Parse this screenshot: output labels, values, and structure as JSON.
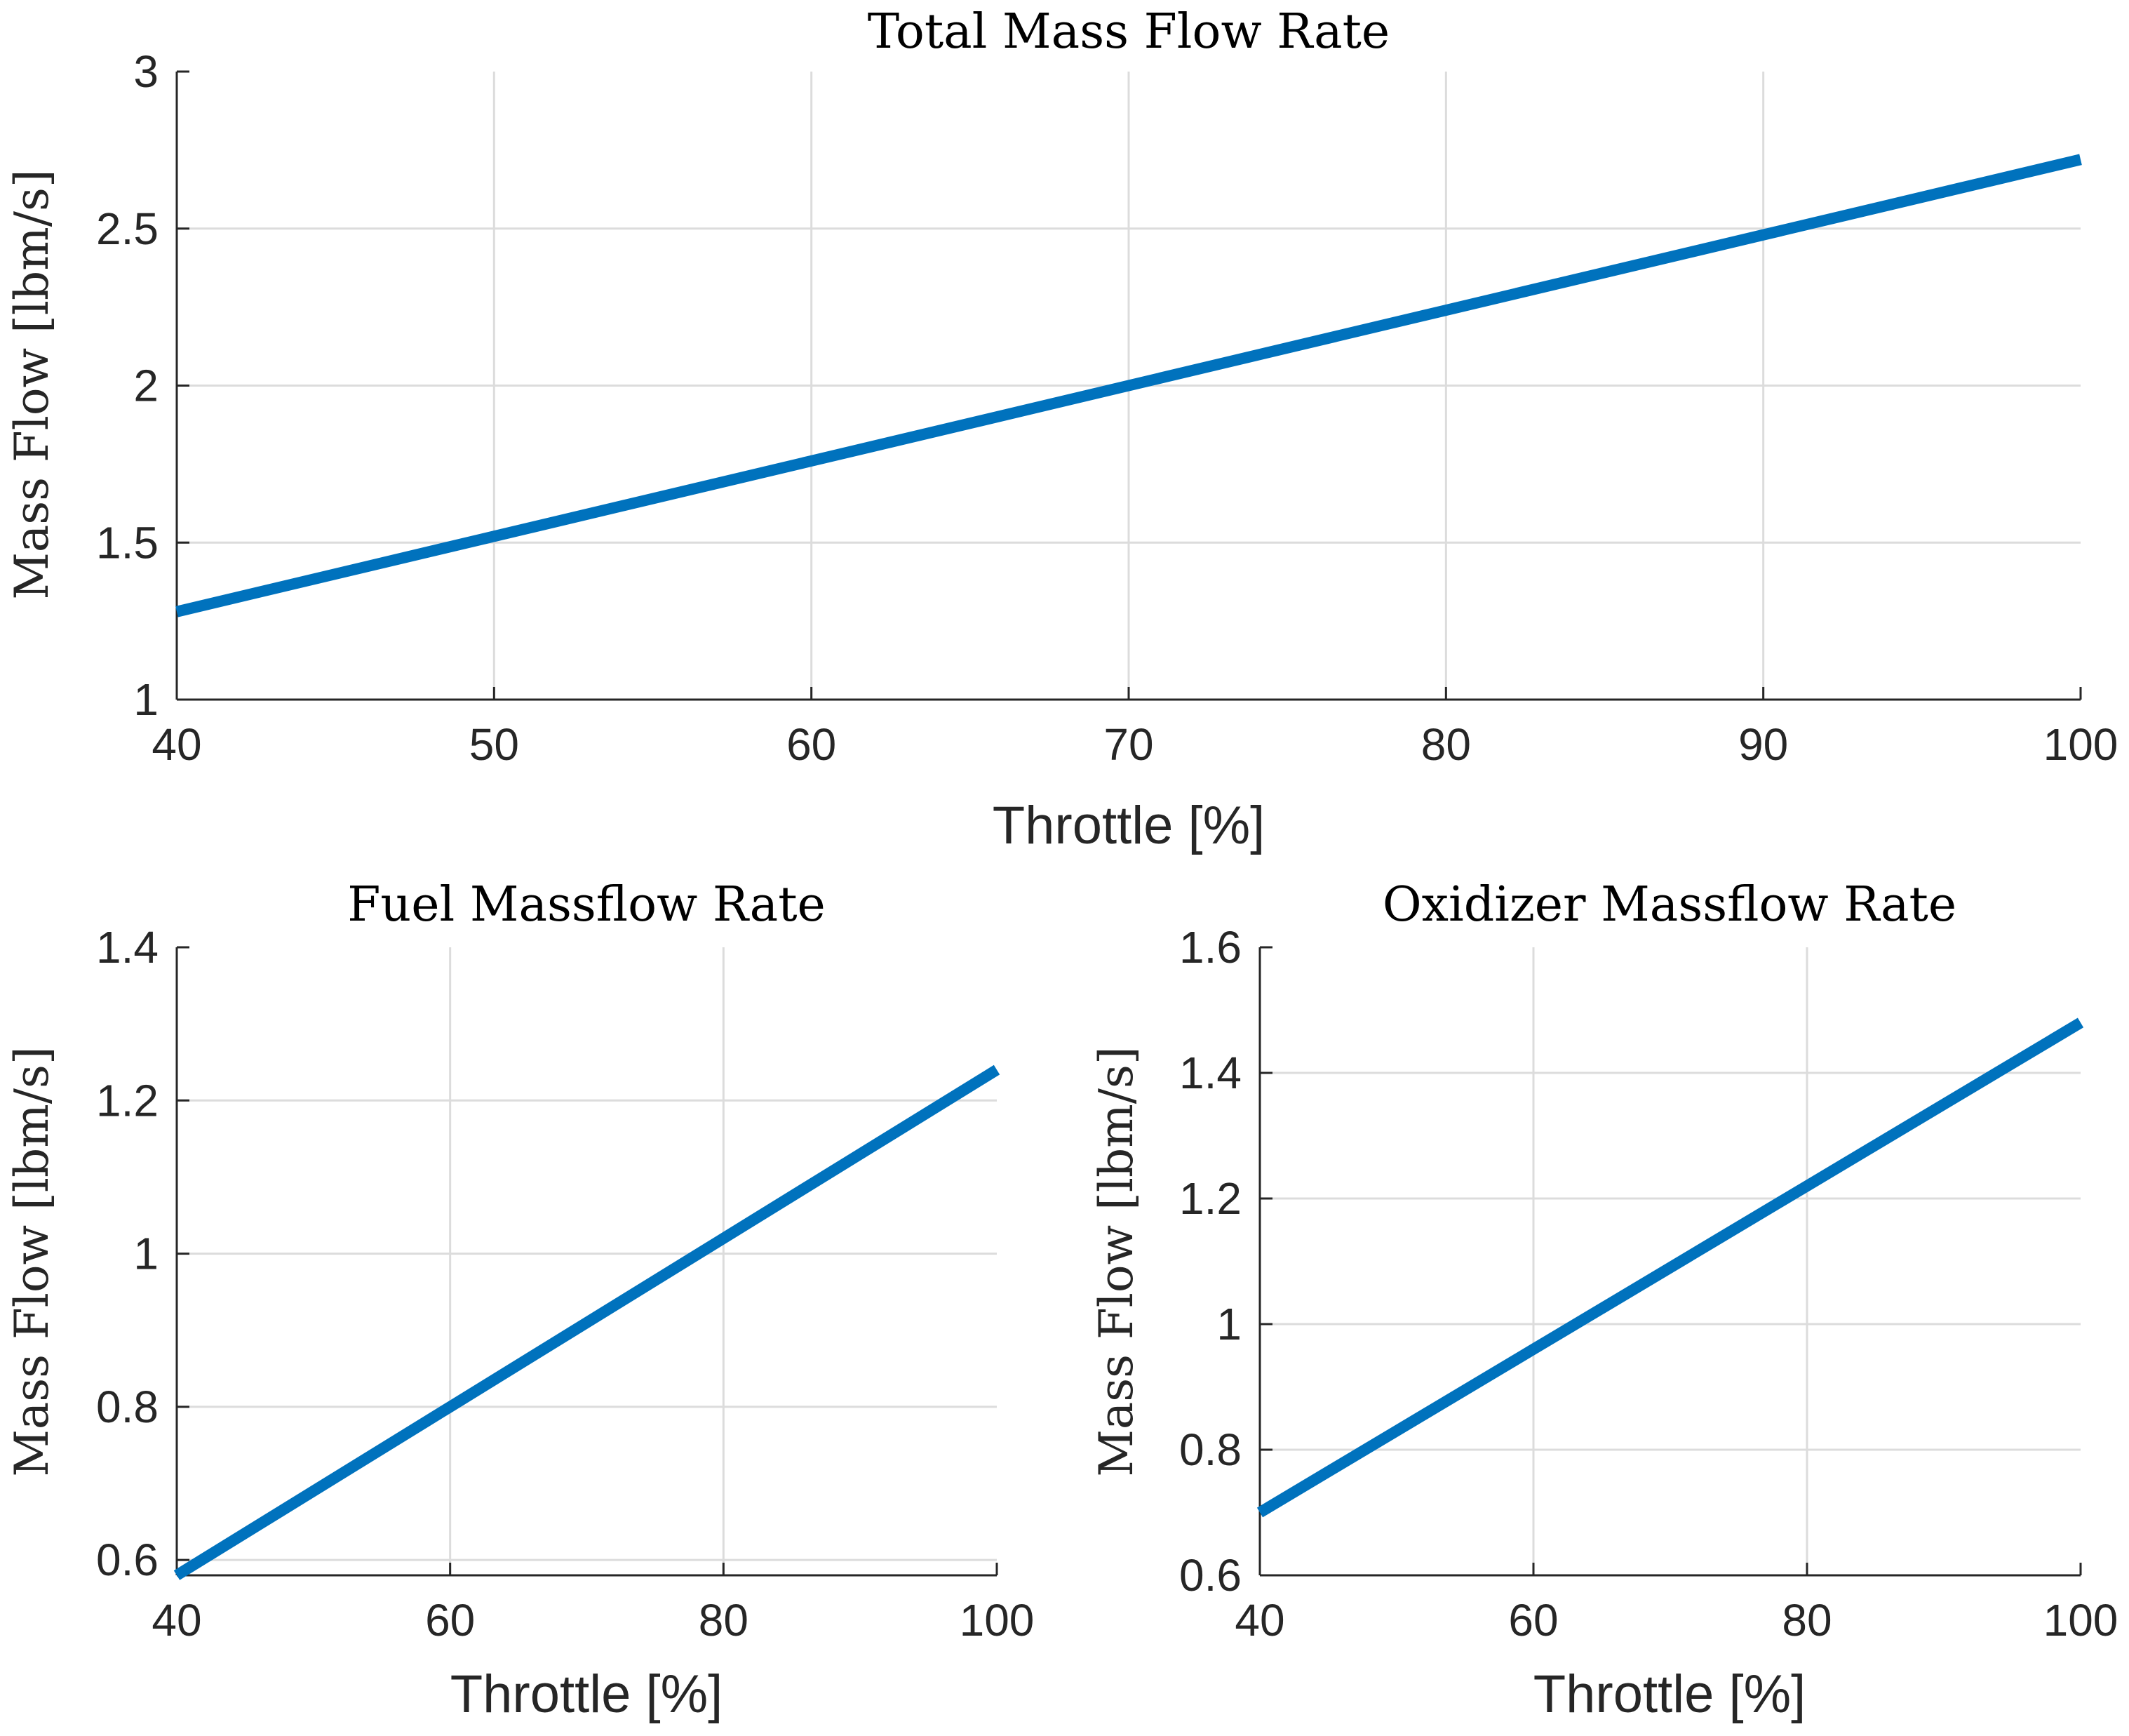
{
  "colors": {
    "series": "#0072bd",
    "axes": "#262626",
    "grid": "#dcdcdc",
    "background": "#ffffff"
  },
  "chart_data": [
    {
      "type": "line",
      "title": "Total Mass Flow Rate",
      "xlabel": "Throttle [%]",
      "ylabel": "Mass Flow [lbm/s]",
      "xlim": [
        40,
        100
      ],
      "ylim": [
        1,
        3
      ],
      "xticks": [
        40,
        50,
        60,
        70,
        80,
        90,
        100
      ],
      "yticks": [
        1,
        1.5,
        2,
        2.5,
        3
      ],
      "grid": true,
      "series": [
        {
          "x": [
            40,
            50,
            60,
            70,
            80,
            90,
            100
          ],
          "y": [
            1.28,
            1.52,
            1.76,
            2.0,
            2.24,
            2.48,
            2.72
          ]
        }
      ]
    },
    {
      "type": "line",
      "title": "Fuel Massflow Rate",
      "xlabel": "Throttle [%]",
      "ylabel": "Mass Flow [lbm/s]",
      "xlim": [
        40,
        100
      ],
      "ylim": [
        0.58,
        1.4
      ],
      "xticks": [
        40,
        60,
        80,
        100
      ],
      "yticks": [
        0.6,
        0.8,
        1,
        1.2,
        1.4
      ],
      "grid": true,
      "series": [
        {
          "x": [
            40,
            60,
            80,
            100
          ],
          "y": [
            0.58,
            0.8,
            1.02,
            1.24
          ]
        }
      ]
    },
    {
      "type": "line",
      "title": "Oxidizer Massflow Rate",
      "xlabel": "Throttle [%]",
      "ylabel": "Mass Flow [lbm/s]",
      "xlim": [
        40,
        100
      ],
      "ylim": [
        0.6,
        1.6
      ],
      "xticks": [
        40,
        60,
        80,
        100
      ],
      "yticks": [
        0.6,
        0.8,
        1,
        1.2,
        1.4,
        1.6
      ],
      "grid": true,
      "series": [
        {
          "x": [
            40,
            60,
            80,
            100
          ],
          "y": [
            0.7,
            0.96,
            1.22,
            1.48
          ]
        }
      ]
    }
  ]
}
